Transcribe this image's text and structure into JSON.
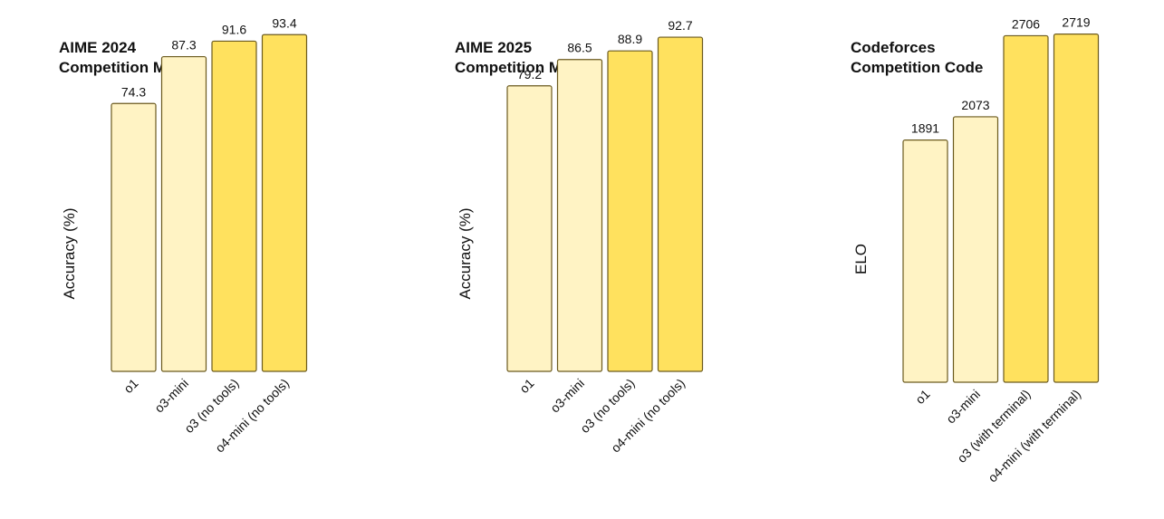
{
  "chart_data": [
    {
      "type": "bar",
      "title": "AIME 2024",
      "subtitle": "Competition Math",
      "ylabel": "Accuracy (%)",
      "categories": [
        "o1",
        "o3-mini",
        "o3 (no tools)",
        "o4-mini (no tools)"
      ],
      "values": [
        74.3,
        87.3,
        91.6,
        93.4
      ],
      "value_labels": [
        "74.3",
        "87.3",
        "91.6",
        "93.4"
      ],
      "ylim": [
        0,
        100
      ],
      "grid": false,
      "bar_colors": [
        "#fff3c4",
        "#fff3c4",
        "#ffe15e",
        "#ffe15e"
      ],
      "border_color": "#6b5a1e"
    },
    {
      "type": "bar",
      "title": "AIME 2025",
      "subtitle": "Competition Math",
      "ylabel": "Accuracy (%)",
      "categories": [
        "o1",
        "o3-mini",
        "o3 (no tools)",
        "o4-mini (no tools)"
      ],
      "values": [
        79.2,
        86.5,
        88.9,
        92.7
      ],
      "value_labels": [
        "79.2",
        "86.5",
        "88.9",
        "92.7"
      ],
      "ylim": [
        0,
        100
      ],
      "grid": false,
      "bar_colors": [
        "#fff3c4",
        "#fff3c4",
        "#ffe15e",
        "#ffe15e"
      ],
      "border_color": "#6b5a1e"
    },
    {
      "type": "bar",
      "title": "Codeforces",
      "subtitle": "Competition Code",
      "ylabel": "ELO",
      "categories": [
        "o1",
        "o3-mini",
        "o3 (with terminal)",
        "o4-mini (with terminal)"
      ],
      "values": [
        1891,
        2073,
        2706,
        2719
      ],
      "value_labels": [
        "1891",
        "2073",
        "2706",
        "2719"
      ],
      "ylim": [
        0,
        2900
      ],
      "grid": false,
      "bar_colors": [
        "#fff3c4",
        "#fff3c4",
        "#ffe15e",
        "#ffe15e"
      ],
      "border_color": "#6b5a1e"
    }
  ]
}
